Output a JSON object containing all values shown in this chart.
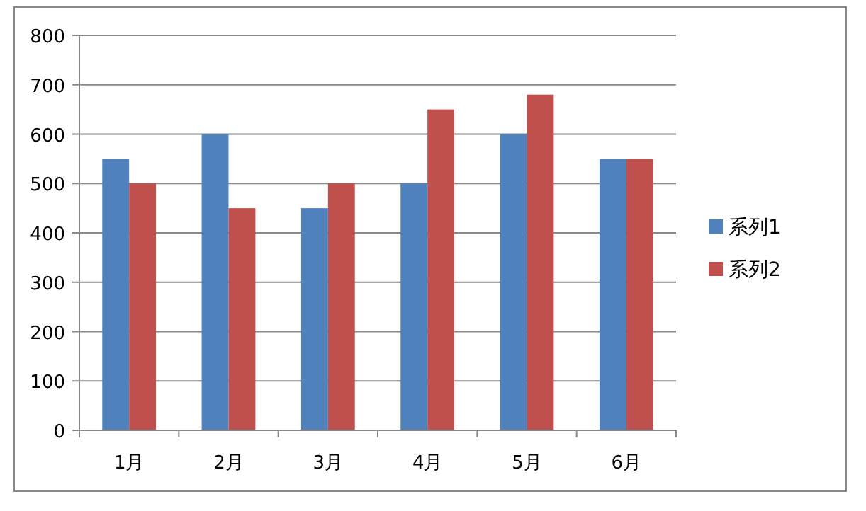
{
  "chart_data": {
    "type": "bar",
    "categories": [
      "1月",
      "2月",
      "3月",
      "4月",
      "5月",
      "6月"
    ],
    "series": [
      {
        "name": "系列1",
        "color": "#4f81bd",
        "values": [
          550,
          600,
          450,
          500,
          600,
          550
        ]
      },
      {
        "name": "系列2",
        "color": "#c0504d",
        "values": [
          500,
          450,
          500,
          650,
          680,
          550
        ]
      }
    ],
    "ylim": [
      0,
      800
    ],
    "yticks": [
      0,
      100,
      200,
      300,
      400,
      500,
      600,
      700,
      800
    ],
    "grid": "y",
    "legend": "right"
  }
}
